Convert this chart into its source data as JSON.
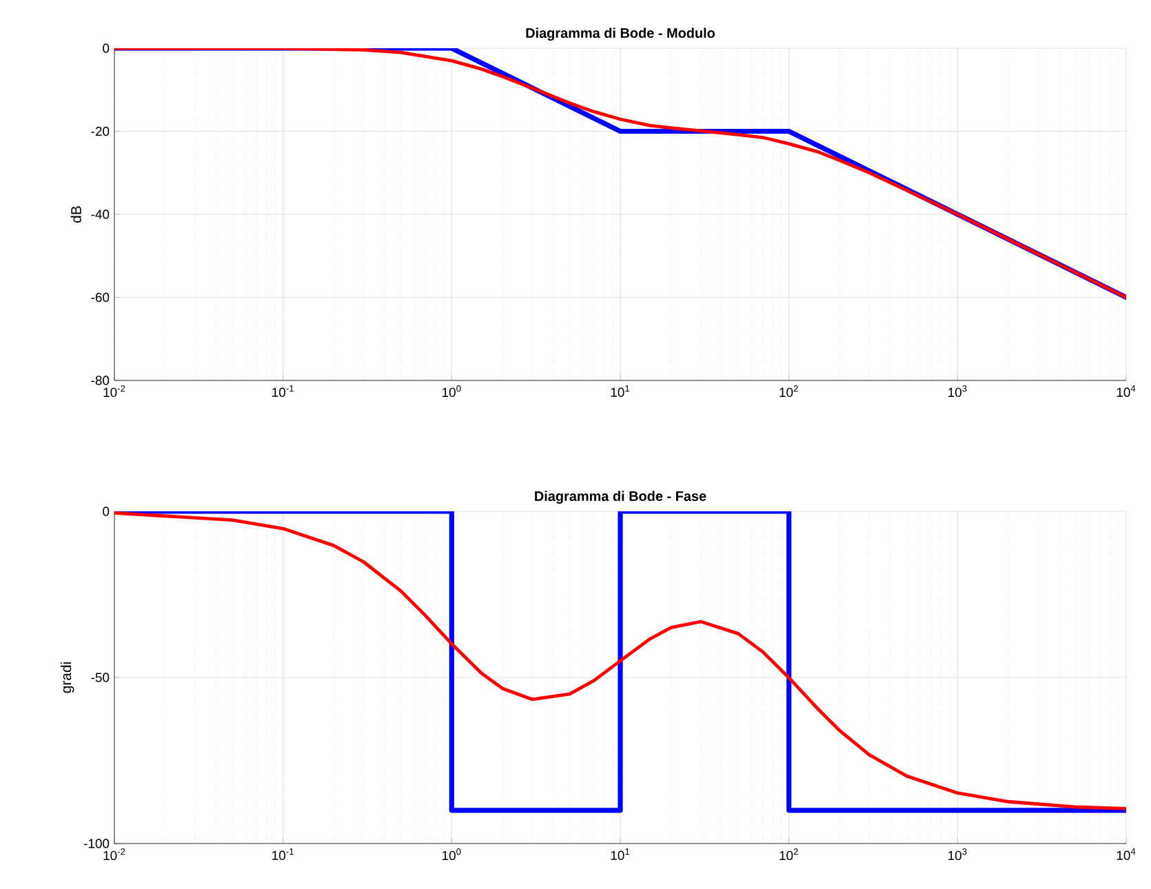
{
  "chart_data": [
    {
      "type": "line",
      "title": "Diagramma di Bode - Modulo",
      "ylabel": "dB",
      "log": "x",
      "grid": true,
      "xlim": [
        0.01,
        10000
      ],
      "xticks": [
        {
          "value": 0.01,
          "label": "10$^{-2}$"
        },
        {
          "value": 0.1,
          "label": "10$^{-1}$"
        },
        {
          "value": 1,
          "label": "10$^{0}$"
        },
        {
          "value": 10,
          "label": "10$^{1}$"
        },
        {
          "value": 100,
          "label": "10$^{2}$"
        },
        {
          "value": 1000,
          "label": "10$^{3}$"
        },
        {
          "value": 10000,
          "label": "10$^{4}$"
        }
      ],
      "ylim": [
        -80,
        0
      ],
      "yticks": [
        -80,
        -60,
        -40,
        -20,
        0
      ],
      "series": [
        {
          "color": "#0000ff",
          "x": [
            0.01,
            1,
            10,
            100,
            10000
          ],
          "values": [
            0,
            0,
            -20,
            -20,
            -60
          ]
        },
        {
          "color": "#ff0000",
          "x": [
            0.01,
            0.1,
            0.3,
            0.5,
            1,
            1.5,
            2,
            3,
            5,
            7,
            10,
            15,
            20,
            30,
            50,
            70,
            100,
            150,
            200,
            300,
            500,
            1000,
            10000
          ],
          "values": [
            0,
            0,
            -0.4,
            -1,
            -3,
            -5,
            -6.8,
            -9.6,
            -13.2,
            -15.3,
            -17.1,
            -18.6,
            -19.2,
            -19.9,
            -20.8,
            -21.5,
            -23,
            -25,
            -27,
            -30,
            -34.2,
            -40,
            -60
          ]
        }
      ]
    },
    {
      "type": "line",
      "title": "Diagramma di Bode - Fase",
      "ylabel": "gradi",
      "log": "x",
      "grid": true,
      "xlim": [
        0.01,
        10000
      ],
      "xticks": [
        {
          "value": 0.01,
          "label": "10$^{-2}$"
        },
        {
          "value": 0.1,
          "label": "10$^{-1}$"
        },
        {
          "value": 1,
          "label": "10$^{0}$"
        },
        {
          "value": 10,
          "label": "10$^{1}$"
        },
        {
          "value": 100,
          "label": "10$^{2}$"
        },
        {
          "value": 1000,
          "label": "10$^{3}$"
        },
        {
          "value": 10000,
          "label": "10$^{4}$"
        }
      ],
      "ylim": [
        -100,
        0
      ],
      "yticks": [
        -100,
        -50,
        0
      ],
      "series": [
        {
          "color": "#0000ff",
          "x": [
            0.01,
            1,
            1,
            10,
            10,
            100,
            100,
            10000
          ],
          "values": [
            0,
            0,
            -90,
            -90,
            0,
            0,
            -90,
            -90
          ]
        },
        {
          "color": "#ff0000",
          "x": [
            0.01,
            0.05,
            0.1,
            0.2,
            0.3,
            0.5,
            0.7,
            1,
            1.5,
            2,
            3,
            5,
            7,
            10,
            15,
            20,
            30,
            50,
            70,
            100,
            150,
            200,
            300,
            500,
            1000,
            2000,
            5000,
            10000
          ],
          "values": [
            -0.5,
            -2.6,
            -5.2,
            -10.3,
            -15.2,
            -24,
            -31.4,
            -39.9,
            -48.7,
            -53.3,
            -56.6,
            -55,
            -50.9,
            -45,
            -38.4,
            -35,
            -33.2,
            -36.8,
            -42.3,
            -50.1,
            -59.7,
            -66,
            -73.3,
            -79.7,
            -84.8,
            -87.4,
            -89,
            -89.5
          ]
        }
      ]
    }
  ]
}
